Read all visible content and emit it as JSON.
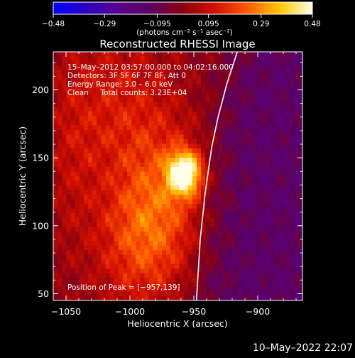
{
  "chart_data": {
    "type": "heatmap",
    "title": "Reconstructed RHESSI Image",
    "xlabel": "Heliocentric X (arcsec)",
    "ylabel": "Heliocentric Y (arcsec)",
    "xlim": [
      -1060,
      -865
    ],
    "ylim": [
      45,
      228
    ],
    "xticks": [
      -1050,
      -1000,
      -950,
      -900
    ],
    "xtick_labels": [
      "−1050",
      "−1000",
      "−950",
      "−900"
    ],
    "yticks": [
      50,
      100,
      150,
      200
    ],
    "ytick_labels": [
      "50",
      "100",
      "150",
      "200"
    ],
    "colorbar": {
      "ticks": [
        -0.48,
        -0.29,
        -0.095,
        0.095,
        0.29,
        0.48
      ],
      "tick_labels": [
        "−0.48",
        "−0.29",
        "−0.095",
        "0.095",
        "0.29",
        "0.48"
      ],
      "units": "(photons cm⁻² s⁻¹ asec⁻²)"
    },
    "annotations": [
      "15–May–2012 03:57:00.000 to 04:02:16.000",
      "Detectors: 3F 5F 6F 7F 8F, Att 0",
      "Energy Range: 3.0 – 6.0 keV",
      "Clean     Total counts: 3.23E+04"
    ],
    "peak_label": "Position of Peak = [−957,139]",
    "peak": {
      "x": -957,
      "y": 139,
      "value": 0.48
    },
    "limb_curve": [
      {
        "x": -948,
        "y": 44
      },
      {
        "x": -945,
        "y": 90
      },
      {
        "x": -941,
        "y": 125
      },
      {
        "x": -936,
        "y": 158
      },
      {
        "x": -931,
        "y": 180
      },
      {
        "x": -924,
        "y": 205
      },
      {
        "x": -916,
        "y": 228
      }
    ],
    "sources": [
      {
        "x": -957,
        "y": 139,
        "sx": 9,
        "sy": 11,
        "amp": 0.5
      },
      {
        "x": -975,
        "y": 120,
        "sx": 26,
        "sy": 42,
        "amp": 0.19
      },
      {
        "x": -995,
        "y": 85,
        "sx": 24,
        "sy": 32,
        "amp": 0.13
      },
      {
        "x": -1012,
        "y": 190,
        "sx": 30,
        "sy": 40,
        "amp": 0.11
      },
      {
        "x": -1045,
        "y": 145,
        "sx": 15,
        "sy": 50,
        "amp": 0.06
      }
    ],
    "colors": [
      "#0000ff",
      "#2a00c0",
      "#5a0090",
      "#5a0060",
      "#8a0010",
      "#d41000",
      "#ff5a00",
      "#ffc800",
      "#ffffe8"
    ]
  },
  "footer": {
    "date": "10–May–2022 22:07"
  }
}
